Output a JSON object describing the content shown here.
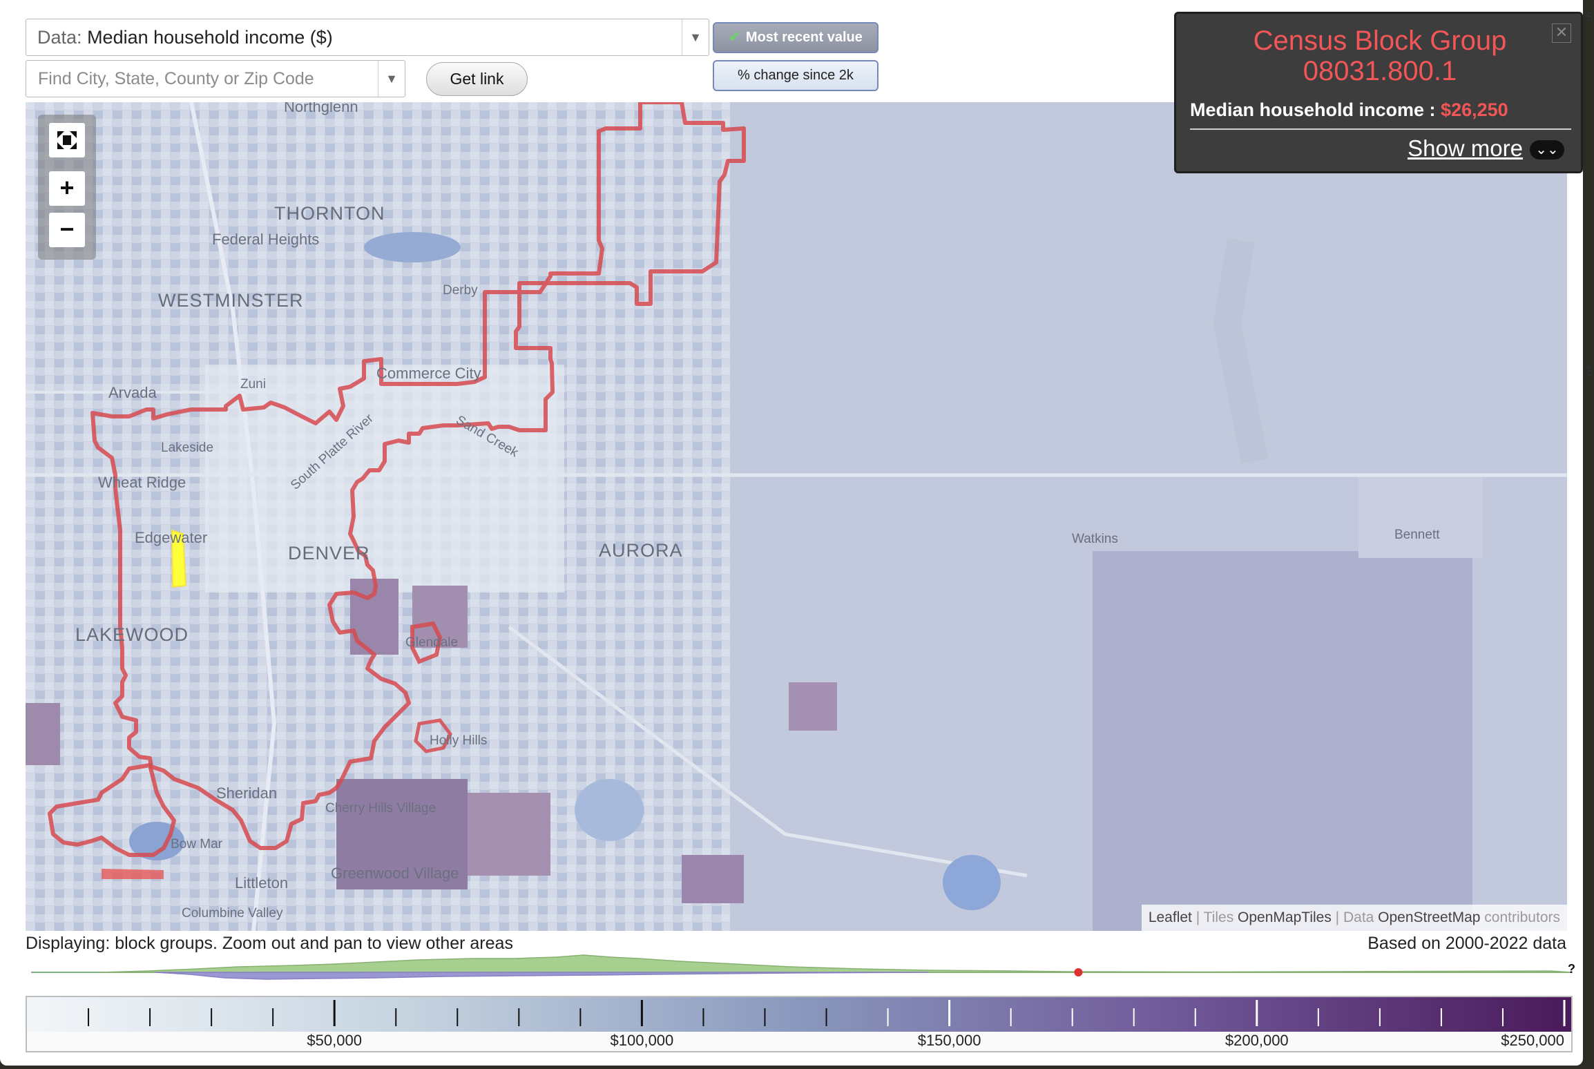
{
  "controls": {
    "data_label": "Data:",
    "data_value": "Median household income ($)",
    "find_placeholder": "Find City, State, County or Zip Code",
    "get_link": "Get link",
    "most_recent": "Most recent value",
    "pct_change": "% change since 2k",
    "dropdown_icon": "triangle-down-icon",
    "check_icon": "checkmark-icon"
  },
  "zoom": {
    "fullscreen_icon": "fullscreen-icon",
    "zoom_in": "+",
    "zoom_out": "−"
  },
  "popup": {
    "title_line1": "Census Block Group",
    "title_line2": "08031.800.1",
    "metric_label": "Median household income :",
    "metric_value": "$26,250",
    "show_more": "Show more",
    "chevron": "»",
    "close_icon": "close-icon"
  },
  "map": {
    "labels": [
      {
        "id": "northglenn",
        "text": "Northglenn"
      },
      {
        "id": "thornton",
        "text": "THORNTON"
      },
      {
        "id": "federal_heights",
        "text": "Federal Heights"
      },
      {
        "id": "westminster",
        "text": "WESTMINSTER"
      },
      {
        "id": "derby",
        "text": "Derby"
      },
      {
        "id": "arvada",
        "text": "Arvada"
      },
      {
        "id": "zuni",
        "text": "Zuni"
      },
      {
        "id": "commerce_city",
        "text": "Commerce City"
      },
      {
        "id": "lakeside",
        "text": "Lakeside"
      },
      {
        "id": "south_platte",
        "text": "South Platte River"
      },
      {
        "id": "sand_creek",
        "text": "Sand Creek"
      },
      {
        "id": "wheat_ridge",
        "text": "Wheat Ridge"
      },
      {
        "id": "edgewater",
        "text": "Edgewater"
      },
      {
        "id": "denver",
        "text": "DENVER"
      },
      {
        "id": "aurora",
        "text": "AURORA"
      },
      {
        "id": "watkins",
        "text": "Watkins"
      },
      {
        "id": "bennett",
        "text": "Bennett"
      },
      {
        "id": "lakewood",
        "text": "LAKEWOOD"
      },
      {
        "id": "glendale",
        "text": "Glendale"
      },
      {
        "id": "holly_hills",
        "text": "Holly Hills"
      },
      {
        "id": "sheridan",
        "text": "Sheridan"
      },
      {
        "id": "cherry_hills",
        "text": "Cherry Hills Village"
      },
      {
        "id": "bow_mar",
        "text": "Bow Mar"
      },
      {
        "id": "greenwood",
        "text": "Greenwood Village"
      },
      {
        "id": "littleton",
        "text": "Littleton"
      },
      {
        "id": "columbine",
        "text": "Columbine Valley"
      }
    ],
    "attribution": {
      "leaflet": "Leaflet",
      "sep1": " | ",
      "tiles": "Tiles",
      "omt": "OpenMapTiles",
      "sep2": " | ",
      "data": "Data",
      "osm": "OpenStreetMap",
      "contributors": "contributors"
    },
    "colors": {
      "highlight_boundary": "#d9534f",
      "selected_region": "#ffff33",
      "base": "#c6cddd"
    }
  },
  "info": {
    "displaying": "Displaying: block groups. Zoom out and pan to view other areas",
    "based_on": "Based on 2000-2022 data",
    "help": "?"
  },
  "legend": {
    "ticks": [
      "$50,000",
      "$100,000",
      "$150,000",
      "$200,000",
      "$250,000"
    ],
    "min_value": 0,
    "max_value": 250000,
    "color_low": "#f3f6f9",
    "color_mid": "#8998bd",
    "color_high": "#4a1a5a"
  },
  "distribution": {
    "marker_value": 170000,
    "upper_color": "#a7cf8f",
    "lower_color": "#9b97d3",
    "marker_color": "#e03030"
  },
  "edge_digits": [
    "5",
    "5"
  ]
}
